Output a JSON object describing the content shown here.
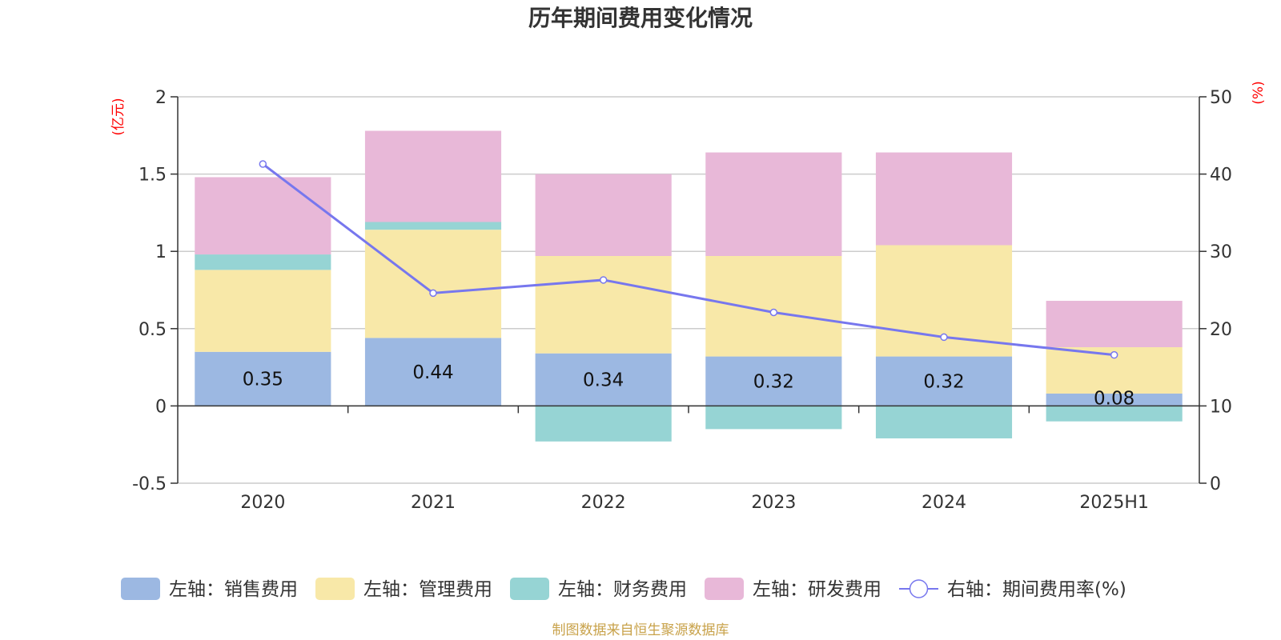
{
  "chart_data": {
    "type": "bar",
    "title": "历年期间费用变化情况",
    "categories": [
      "2020",
      "2021",
      "2022",
      "2023",
      "2024",
      "2025H1"
    ],
    "left_axis": {
      "unit": "(亿元)",
      "ylim": [
        -0.5,
        2
      ],
      "ticks": [
        "2",
        "1.5",
        "1",
        "0.5",
        "0",
        "-0.5"
      ]
    },
    "right_axis": {
      "unit": "(%)",
      "ylim": [
        0,
        50
      ],
      "ticks": [
        "50",
        "40",
        "30",
        "20",
        "10",
        "0"
      ]
    },
    "series": [
      {
        "name": "左轴：销售费用",
        "type": "bar",
        "color": "#9cb8e2",
        "values": [
          0.35,
          0.44,
          0.34,
          0.32,
          0.32,
          0.08
        ],
        "labels": [
          "0.35",
          "0.44",
          "0.34",
          "0.32",
          "0.32",
          "0.08"
        ]
      },
      {
        "name": "左轴：管理费用",
        "type": "bar",
        "color": "#f8e8a8",
        "values": [
          0.53,
          0.7,
          0.63,
          0.65,
          0.72,
          0.3
        ]
      },
      {
        "name": "左轴：财务费用",
        "type": "bar",
        "color": "#96d4d4",
        "values": [
          0.1,
          0.05,
          -0.23,
          -0.15,
          -0.21,
          -0.1
        ]
      },
      {
        "name": "左轴：研发费用",
        "type": "bar",
        "color": "#e8b8d8",
        "values": [
          0.5,
          0.59,
          0.53,
          0.67,
          0.6,
          0.3
        ]
      },
      {
        "name": "右轴：期间费用率(%)",
        "type": "line",
        "axis": "right",
        "color": "#7777ee",
        "values": [
          41.3,
          24.6,
          26.3,
          22.1,
          18.9,
          16.6
        ]
      }
    ],
    "grid": true,
    "legend": "bottom",
    "source": "制图数据来自恒生聚源数据库"
  }
}
